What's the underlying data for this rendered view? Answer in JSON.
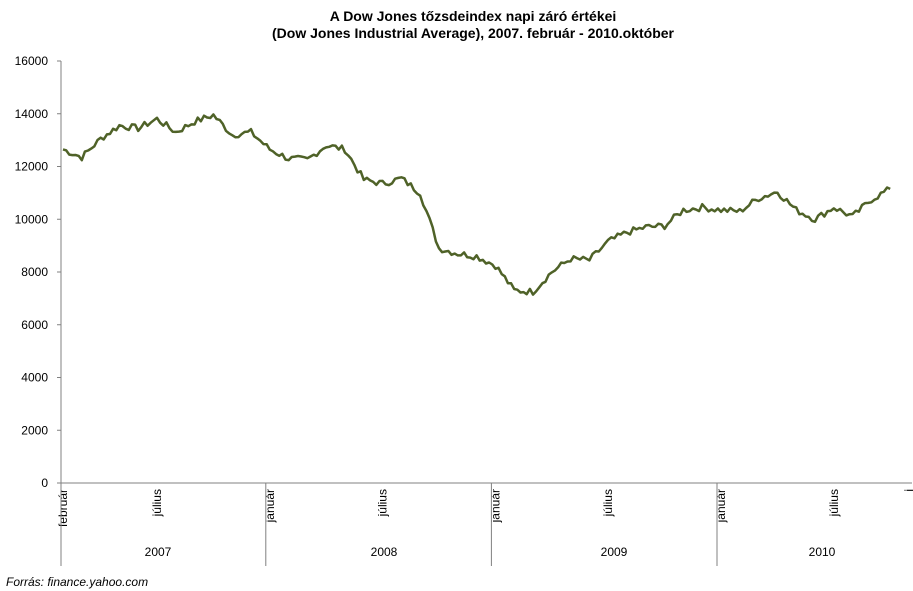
{
  "chart_data": {
    "type": "line",
    "title": "A Dow Jones tőzsdeindex napi záró értékei",
    "subtitle": "(Dow Jones Industrial Average), 2007. február - 2010.október",
    "ylim": [
      0,
      16000
    ],
    "yticks": [
      0,
      2000,
      4000,
      6000,
      8000,
      10000,
      12000,
      14000,
      16000
    ],
    "grid": false,
    "x_month_labels": [
      "február",
      "július",
      "január",
      "július",
      "január",
      "július",
      "január",
      "július",
      "j"
    ],
    "x_year_labels": [
      "2007",
      "2008",
      "2009",
      "2010"
    ],
    "line_color": "#4f6228",
    "series": [
      {
        "x": [
          "2007-02",
          "2007-03",
          "2007-04",
          "2007-05",
          "2007-06",
          "2007-07",
          "2007-08",
          "2007-09",
          "2007-10",
          "2007-11",
          "2007-12",
          "2008-01",
          "2008-02",
          "2008-03",
          "2008-04",
          "2008-05",
          "2008-06",
          "2008-07",
          "2008-08",
          "2008-09",
          "2008-10",
          "2008-11",
          "2008-12",
          "2009-01",
          "2009-02",
          "2009-03",
          "2009-04",
          "2009-05",
          "2009-06",
          "2009-07",
          "2009-08",
          "2009-09",
          "2009-10",
          "2009-11",
          "2009-12",
          "2010-01",
          "2010-02",
          "2010-03",
          "2010-04",
          "2010-05",
          "2010-06",
          "2010-07",
          "2010-08",
          "2010-09",
          "2010-10"
        ],
        "values": [
          12650,
          12350,
          13050,
          13550,
          13450,
          13800,
          13300,
          13700,
          13950,
          13200,
          13300,
          12650,
          12300,
          12250,
          12800,
          12650,
          11500,
          11350,
          11550,
          11000,
          8900,
          8700,
          8600,
          8250,
          7300,
          7250,
          8000,
          8500,
          8450,
          9150,
          9500,
          9700,
          9750,
          10350,
          10450,
          10350,
          10300,
          10800,
          11050,
          10350,
          10000,
          10450,
          10100,
          10750,
          11150
        ]
      }
    ]
  },
  "source": "Forrás: finance.yahoo.com"
}
